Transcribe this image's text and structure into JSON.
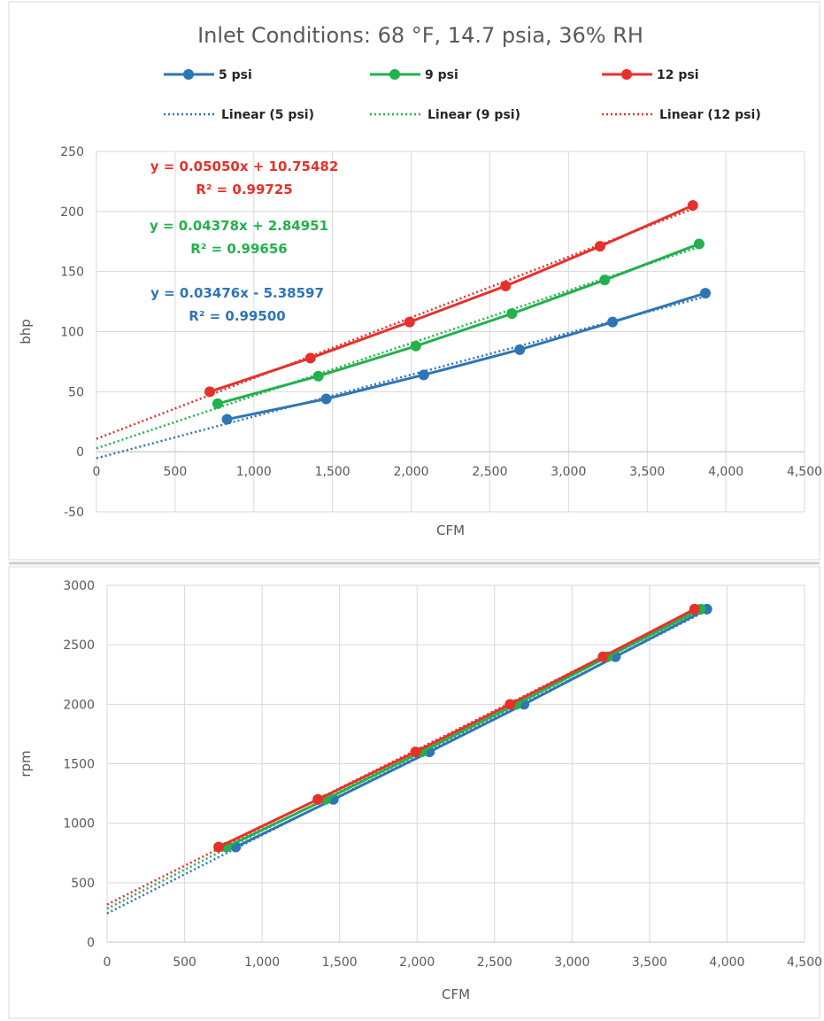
{
  "title": "Inlet Conditions: 68 °F, 14.7 psia, 36% RH",
  "colors": {
    "5 psi": "#2e75b6",
    "9 psi": "#22b14c",
    "12 psi": "#e8302a"
  },
  "legend": [
    {
      "label": "5 psi",
      "kind": "series",
      "color": "#2e75b6"
    },
    {
      "label": "9 psi",
      "kind": "series",
      "color": "#22b14c"
    },
    {
      "label": "12 psi",
      "kind": "series",
      "color": "#e8302a"
    },
    {
      "label": "Linear (5 psi)",
      "kind": "trend",
      "color": "#2e75b6"
    },
    {
      "label": "Linear (9 psi)",
      "kind": "trend",
      "color": "#22b14c"
    },
    {
      "label": "Linear (12 psi)",
      "kind": "trend",
      "color": "#e8302a"
    }
  ],
  "chart_data": [
    {
      "type": "line",
      "xlabel": "CFM",
      "ylabel": "bhp",
      "xlim": [
        0,
        4500
      ],
      "ylim": [
        -50,
        250
      ],
      "xticks": [
        "0",
        "500",
        "1,000",
        "1,500",
        "2,000",
        "2,500",
        "3,000",
        "3,500",
        "4,000",
        "4,500"
      ],
      "yticks": [
        "-50",
        "0",
        "50",
        "100",
        "150",
        "200",
        "250"
      ],
      "grid": true,
      "series": [
        {
          "name": "5 psi",
          "color": "#2e75b6",
          "x": [
            830,
            1460,
            2080,
            2690,
            3280,
            3870
          ],
          "y": [
            27,
            44,
            64,
            85,
            108,
            132
          ],
          "trend": {
            "name": "Linear (5 psi)",
            "slope": 0.03476,
            "intercept": -5.38597
          }
        },
        {
          "name": "9 psi",
          "color": "#22b14c",
          "x": [
            770,
            1410,
            2030,
            2640,
            3230,
            3830
          ],
          "y": [
            40,
            63,
            88,
            115,
            143,
            173
          ],
          "trend": {
            "name": "Linear (9 psi)",
            "slope": 0.04378,
            "intercept": 2.84951
          }
        },
        {
          "name": "12 psi",
          "color": "#e8302a",
          "x": [
            720,
            1360,
            1990,
            2600,
            3200,
            3790
          ],
          "y": [
            50,
            78,
            108,
            138,
            171,
            205
          ],
          "trend": {
            "name": "Linear (12 psi)",
            "slope": 0.0505,
            "intercept": 10.75482
          }
        }
      ],
      "annotations": [
        {
          "series": "12 psi",
          "equation": "y = 0.05050x + 10.75482",
          "r2": "R² = 0.99725"
        },
        {
          "series": "9 psi",
          "equation": "y = 0.04378x + 2.84951",
          "r2": "R² = 0.99656"
        },
        {
          "series": "5 psi",
          "equation": "y = 0.03476x - 5.38597",
          "r2": "R² = 0.99500"
        }
      ]
    },
    {
      "type": "line",
      "xlabel": "CFM",
      "ylabel": "rpm",
      "xlim": [
        0,
        4500
      ],
      "ylim": [
        0,
        3000
      ],
      "xticks": [
        "0",
        "500",
        "1,000",
        "1,500",
        "2,000",
        "2,500",
        "3,000",
        "3,500",
        "4,000",
        "4,500"
      ],
      "yticks": [
        "0",
        "500",
        "1000",
        "1500",
        "2000",
        "2500",
        "3000"
      ],
      "grid": true,
      "series": [
        {
          "name": "5 psi",
          "color": "#2e75b6",
          "x": [
            830,
            1460,
            2080,
            2690,
            3280,
            3870
          ],
          "y": [
            800,
            1200,
            1600,
            2000,
            2400,
            2800
          ],
          "trend": {
            "name": "Linear (5 psi)"
          }
        },
        {
          "name": "9 psi",
          "color": "#22b14c",
          "x": [
            770,
            1410,
            2030,
            2640,
            3230,
            3830
          ],
          "y": [
            800,
            1200,
            1600,
            2000,
            2400,
            2800
          ],
          "trend": {
            "name": "Linear (9 psi)"
          }
        },
        {
          "name": "12 psi",
          "color": "#e8302a",
          "x": [
            720,
            1360,
            1990,
            2600,
            3200,
            3790
          ],
          "y": [
            800,
            1200,
            1600,
            2000,
            2400,
            2800
          ],
          "trend": {
            "name": "Linear (12 psi)"
          }
        }
      ]
    }
  ]
}
